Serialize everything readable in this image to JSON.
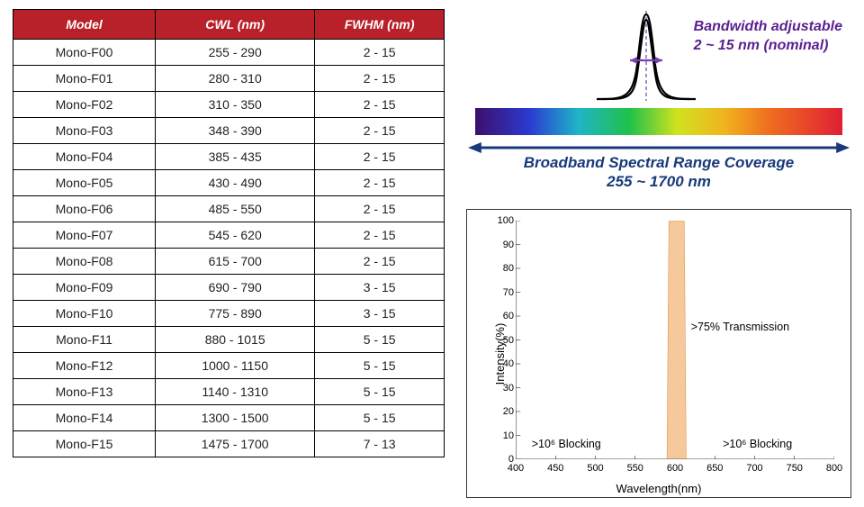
{
  "table": {
    "header_bg": "#b82129",
    "header_fg": "#ffffff",
    "columns": [
      "Model",
      "CWL (nm)",
      "FWHM (nm)"
    ],
    "rows": [
      [
        "Mono-F00",
        "255 - 290",
        "2 - 15"
      ],
      [
        "Mono-F01",
        "280 - 310",
        "2 - 15"
      ],
      [
        "Mono-F02",
        "310 - 350",
        "2 - 15"
      ],
      [
        "Mono-F03",
        "348 - 390",
        "2 - 15"
      ],
      [
        "Mono-F04",
        "385 - 435",
        "2 - 15"
      ],
      [
        "Mono-F05",
        "430 - 490",
        "2 - 15"
      ],
      [
        "Mono-F06",
        "485 - 550",
        "2 - 15"
      ],
      [
        "Mono-F07",
        "545 - 620",
        "2 - 15"
      ],
      [
        "Mono-F08",
        "615 - 700",
        "2 - 15"
      ],
      [
        "Mono-F09",
        "690 - 790",
        "3 - 15"
      ],
      [
        "Mono-F10",
        "775 - 890",
        "3 - 15"
      ],
      [
        "Mono-F11",
        "880 - 1015",
        "5 - 15"
      ],
      [
        "Mono-F12",
        "1000 - 1150",
        "5 - 15"
      ],
      [
        "Mono-F13",
        "1140 - 1310",
        "5 - 15"
      ],
      [
        "Mono-F14",
        "1300 - 1500",
        "5 - 15"
      ],
      [
        "Mono-F15",
        "1475 - 1700",
        "7 - 13"
      ]
    ]
  },
  "diagram": {
    "bandwidth_label_line1": "Bandwidth adjustable",
    "bandwidth_label_line2": "2 ~ 15 nm (nominal)",
    "bandwidth_color": "#5a1f91",
    "range_label_line1": "Broadband Spectral Range Coverage",
    "range_label_line2": "255 ~ 1700 nm",
    "range_color": "#18397a",
    "arrow_color": "#18397a",
    "gauss_stroke": "#000000",
    "gauss_center_dash": "#7450b0",
    "purple_arrow": "#7a3fb1",
    "spectrum_stops": [
      [
        "0%",
        "#3d0f6b"
      ],
      [
        "15%",
        "#2a3bd1"
      ],
      [
        "28%",
        "#1fb5c7"
      ],
      [
        "42%",
        "#1fc14a"
      ],
      [
        "55%",
        "#d0e21f"
      ],
      [
        "68%",
        "#f0b31f"
      ],
      [
        "80%",
        "#ef6e1f"
      ],
      [
        "100%",
        "#e01f35"
      ]
    ]
  },
  "chart": {
    "type": "line",
    "xlabel": "Wavelength(nm)",
    "ylabel": "Intensity(%)",
    "xlim": [
      400,
      800
    ],
    "ylim": [
      0,
      100
    ],
    "xticks": [
      400,
      450,
      500,
      550,
      600,
      650,
      700,
      750,
      800
    ],
    "yticks": [
      0,
      10,
      20,
      30,
      40,
      50,
      60,
      70,
      80,
      90,
      100
    ],
    "axis_color": "#000000",
    "tick_fontsize": 11,
    "label_fontsize": 13,
    "series_fill": "#f5c99b",
    "series_stroke": "#e0954a",
    "peak_center": 602,
    "peak_halfwidth": 12,
    "peak_height": 100,
    "annotations": {
      "left": ">10⁶ Blocking",
      "right": ">10⁶ Blocking",
      "center": ">75% Transmission"
    }
  }
}
